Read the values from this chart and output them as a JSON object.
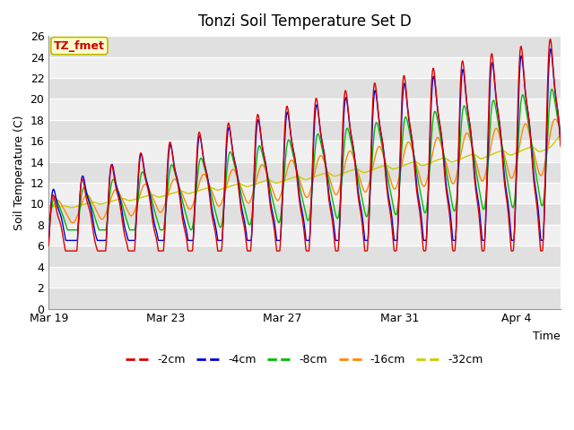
{
  "title": "Tonzi Soil Temperature Set D",
  "xlabel": "Time",
  "ylabel": "Soil Temperature (C)",
  "ylim": [
    0,
    26
  ],
  "yticks": [
    0,
    2,
    4,
    6,
    8,
    10,
    12,
    14,
    16,
    18,
    20,
    22,
    24,
    26
  ],
  "xtick_labels": [
    "Mar 19",
    "Mar 23",
    "Mar 27",
    "Mar 31",
    "Apr 4"
  ],
  "xtick_positions": [
    0,
    4,
    8,
    12,
    16
  ],
  "xlim": [
    0,
    17.5
  ],
  "legend_labels": [
    "-2cm",
    "-4cm",
    "-8cm",
    "-16cm",
    "-32cm"
  ],
  "line_colors": [
    "#dd0000",
    "#0000dd",
    "#00bb00",
    "#ff8800",
    "#cccc00"
  ],
  "annotation_text": "TZ_fmet",
  "annotation_bg": "#ffffcc",
  "annotation_border": "#bbbb00",
  "annotation_text_color": "#cc0000",
  "n_points": 1000,
  "n_days": 17.5,
  "trend_start": 9.5,
  "trend_end": 15.5
}
